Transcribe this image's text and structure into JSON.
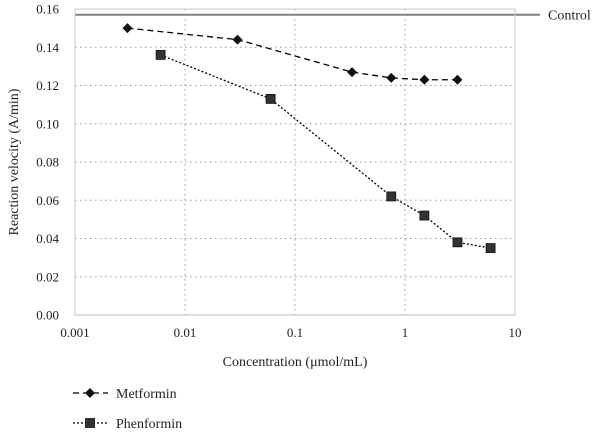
{
  "chart_data": {
    "type": "line",
    "x_scale": "log",
    "xlabel": "Concentration (μmol/mL)",
    "ylabel": "Reaction velocity (A/min)",
    "xlim": [
      0.001,
      10
    ],
    "ylim": [
      0,
      0.16
    ],
    "x_ticks": [
      0.001,
      0.01,
      0.1,
      1,
      10
    ],
    "x_tick_labels": [
      "0.001",
      "0.01",
      "0.1",
      "1",
      "10"
    ],
    "y_ticks": [
      0,
      0.02,
      0.04,
      0.06,
      0.08,
      0.1,
      0.12,
      0.14,
      0.16
    ],
    "y_tick_labels": [
      "0.00",
      "0.02",
      "0.04",
      "0.06",
      "0.08",
      "0.10",
      "0.12",
      "0.14",
      "0.16"
    ],
    "grid": "dotted",
    "legend_position": "bottom-left",
    "reference_line": {
      "label": "Control",
      "y": 0.157,
      "color": "#808080"
    },
    "series": [
      {
        "name": "Metformin",
        "marker": "diamond",
        "line_style": "dashed",
        "color": "#000000",
        "x": [
          0.003,
          0.03,
          0.33,
          0.75,
          1.5,
          3
        ],
        "y": [
          0.15,
          0.144,
          0.127,
          0.124,
          0.123,
          0.123
        ]
      },
      {
        "name": "Phenformin",
        "marker": "square",
        "line_style": "dotted",
        "color": "#000000",
        "x": [
          0.006,
          0.06,
          0.75,
          1.5,
          3,
          6
        ],
        "y": [
          0.136,
          0.113,
          0.062,
          0.052,
          0.038,
          0.035
        ]
      }
    ]
  }
}
